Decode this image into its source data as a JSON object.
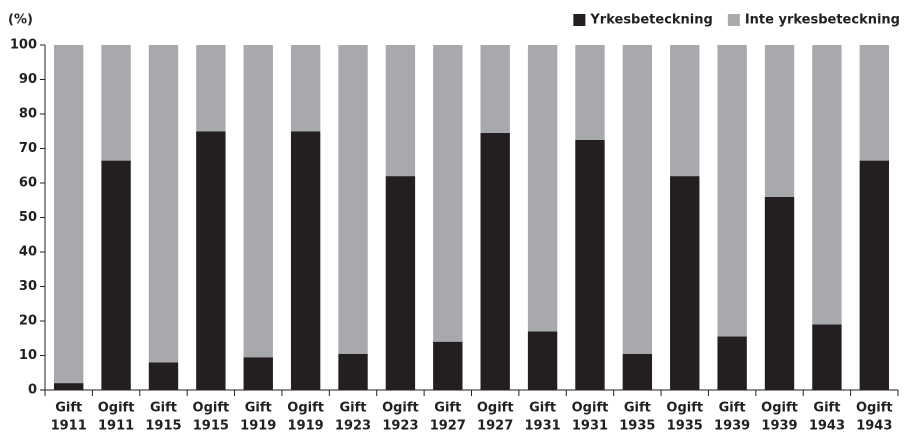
{
  "chart_data": {
    "type": "stacked_bar",
    "ylabel": "(%)",
    "categories": [
      [
        "Gift",
        "1911"
      ],
      [
        "Ogift",
        "1911"
      ],
      [
        "Gift",
        "1915"
      ],
      [
        "Ogift",
        "1915"
      ],
      [
        "Gift",
        "1919"
      ],
      [
        "Ogift",
        "1919"
      ],
      [
        "Gift",
        "1923"
      ],
      [
        "Ogift",
        "1923"
      ],
      [
        "Gift",
        "1927"
      ],
      [
        "Ogift",
        "1927"
      ],
      [
        "Gift",
        "1931"
      ],
      [
        "Ogift",
        "1931"
      ],
      [
        "Gift",
        "1935"
      ],
      [
        "Ogift",
        "1935"
      ],
      [
        "Gift",
        "1939"
      ],
      [
        "Ogift",
        "1939"
      ],
      [
        "Gift",
        "1943"
      ],
      [
        "Ogift",
        "1943"
      ]
    ],
    "series": [
      {
        "name": "Yrkesbeteckning",
        "color": "#231f20",
        "values": [
          2,
          66.5,
          8,
          75,
          9.5,
          75,
          10.5,
          62,
          14,
          74.5,
          17,
          72.5,
          10.5,
          62,
          15.5,
          56,
          19,
          66.5
        ]
      },
      {
        "name": "Inte yrkesbeteckning",
        "color": "#a7a9ac",
        "values": [
          98,
          33.5,
          92,
          25,
          90.5,
          25,
          89.5,
          38,
          86,
          25.5,
          83,
          27.5,
          89.5,
          38,
          84.5,
          44,
          81,
          33.5
        ]
      }
    ],
    "ylim": [
      0,
      100
    ],
    "yticks": [
      0,
      10,
      20,
      30,
      40,
      50,
      60,
      70,
      80,
      90,
      100
    ],
    "legend": "top-right"
  }
}
